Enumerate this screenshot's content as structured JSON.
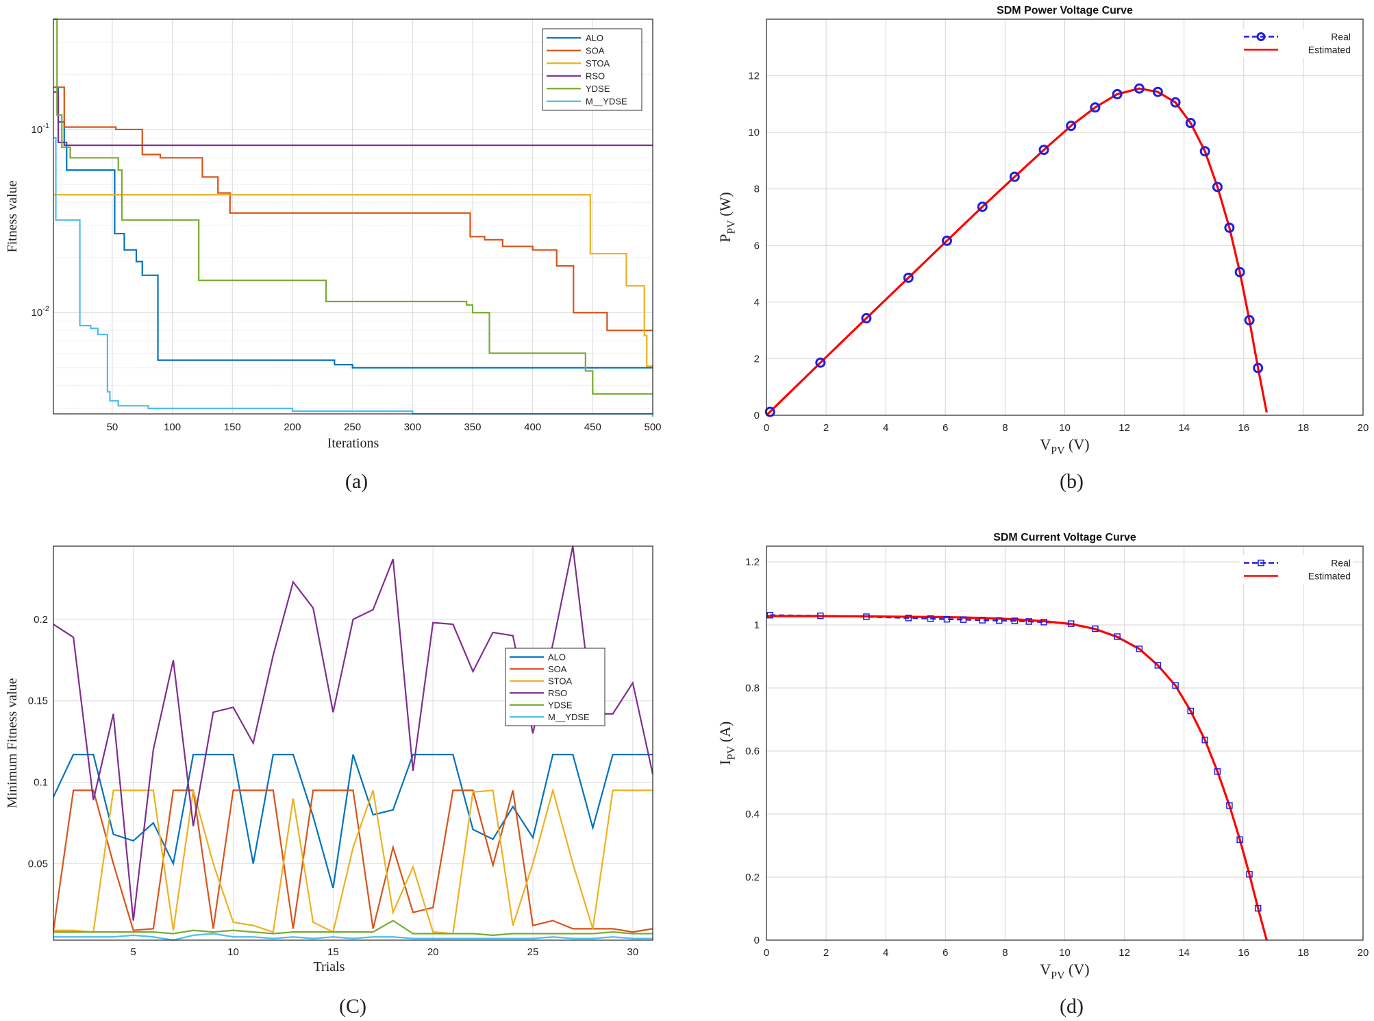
{
  "chart_data": [
    {
      "panel": "a",
      "type": "line",
      "caption": "(a)",
      "xlabel": "Iterations",
      "ylabel": "Fitness value",
      "yscale": "log",
      "xlim": [
        1,
        500
      ],
      "ylim": [
        0.0028,
        0.4
      ],
      "xticks": [
        50,
        100,
        150,
        200,
        250,
        300,
        350,
        400,
        450,
        500
      ],
      "ytick_labels": [
        {
          "value": 0.1,
          "base": "10",
          "exp": "-1"
        },
        {
          "value": 0.01,
          "base": "10",
          "exp": "-2"
        }
      ],
      "legend": "top-right",
      "series": [
        {
          "name": "ALO",
          "color": "#0072bd",
          "steps": [
            [
              1,
              0.17
            ],
            [
              5,
              0.11
            ],
            [
              10,
              0.085
            ],
            [
              12,
              0.06
            ],
            [
              50,
              0.06
            ],
            [
              52,
              0.027
            ],
            [
              60,
              0.022
            ],
            [
              70,
              0.019
            ],
            [
              75,
              0.016
            ],
            [
              88,
              0.0055
            ],
            [
              230,
              0.0055
            ],
            [
              235,
              0.0052
            ],
            [
              250,
              0.005
            ],
            [
              500,
              0.005
            ]
          ]
        },
        {
          "name": "SOA",
          "color": "#d95319",
          "steps": [
            [
              1,
              0.17
            ],
            [
              10,
              0.103
            ],
            [
              48,
              0.103
            ],
            [
              53,
              0.1
            ],
            [
              70,
              0.1
            ],
            [
              75,
              0.073
            ],
            [
              90,
              0.07
            ],
            [
              120,
              0.07
            ],
            [
              125,
              0.055
            ],
            [
              138,
              0.045
            ],
            [
              148,
              0.035
            ],
            [
              345,
              0.035
            ],
            [
              348,
              0.026
            ],
            [
              360,
              0.025
            ],
            [
              375,
              0.023
            ],
            [
              400,
              0.022
            ],
            [
              420,
              0.018
            ],
            [
              425,
              0.018
            ],
            [
              434,
              0.01
            ],
            [
              460,
              0.01
            ],
            [
              462,
              0.008
            ],
            [
              500,
              0.008
            ]
          ]
        },
        {
          "name": "STOA",
          "color": "#edb120",
          "steps": [
            [
              1,
              0.044
            ],
            [
              445,
              0.044
            ],
            [
              448,
              0.021
            ],
            [
              475,
              0.021
            ],
            [
              478,
              0.014
            ],
            [
              490,
              0.014
            ],
            [
              493,
              0.0075
            ],
            [
              495,
              0.0051
            ],
            [
              500,
              0.0051
            ]
          ]
        },
        {
          "name": "RSO",
          "color": "#7e2f8e",
          "steps": [
            [
              1,
              0.16
            ],
            [
              5,
              0.085
            ],
            [
              10,
              0.082
            ],
            [
              500,
              0.082
            ]
          ]
        },
        {
          "name": "YDSE",
          "color": "#77ac30",
          "steps": [
            [
              1,
              0.4
            ],
            [
              4,
              0.12
            ],
            [
              8,
              0.08
            ],
            [
              15,
              0.07
            ],
            [
              48,
              0.07
            ],
            [
              55,
              0.06
            ],
            [
              58,
              0.032
            ],
            [
              120,
              0.032
            ],
            [
              122,
              0.015
            ],
            [
              225,
              0.015
            ],
            [
              228,
              0.0115
            ],
            [
              345,
              0.011
            ],
            [
              350,
              0.01
            ],
            [
              362,
              0.01
            ],
            [
              364,
              0.006
            ],
            [
              440,
              0.006
            ],
            [
              444,
              0.0048
            ],
            [
              450,
              0.0036
            ],
            [
              500,
              0.0036
            ]
          ]
        },
        {
          "name": "M__YDSE",
          "color": "#4dbeee",
          "steps": [
            [
              1,
              0.09
            ],
            [
              3,
              0.032
            ],
            [
              20,
              0.032
            ],
            [
              23,
              0.0085
            ],
            [
              32,
              0.0082
            ],
            [
              38,
              0.0076
            ],
            [
              43,
              0.0076
            ],
            [
              46,
              0.0037
            ],
            [
              48,
              0.0033
            ],
            [
              55,
              0.0031
            ],
            [
              80,
              0.003
            ],
            [
              120,
              0.003
            ],
            [
              200,
              0.0029
            ],
            [
              300,
              0.0028
            ],
            [
              400,
              0.0028
            ],
            [
              500,
              0.0027
            ]
          ]
        }
      ]
    },
    {
      "panel": "b",
      "type": "line",
      "caption": "(b)",
      "title": "SDM Power Voltage Curve",
      "xlabel": {
        "base": "V",
        "sub": "PV",
        "unit": " (V)"
      },
      "ylabel": {
        "base": "P",
        "sub": "PV",
        "unit": " (W)"
      },
      "xlim": [
        0,
        20
      ],
      "ylim": [
        0,
        14
      ],
      "xticks": [
        0,
        2,
        4,
        6,
        8,
        10,
        12,
        14,
        16,
        18,
        20
      ],
      "yticks": [
        0,
        2,
        4,
        6,
        8,
        10,
        12
      ],
      "legend": "top-right",
      "series": [
        {
          "name": "Real",
          "color": "#1f1fe0",
          "marker": "circle",
          "x": [
            0.12,
            1.81,
            3.35,
            4.76,
            6.05,
            7.24,
            8.32,
            9.3,
            10.21,
            11.02,
            11.76,
            12.5,
            13.12,
            13.71,
            14.22,
            14.7,
            15.12,
            15.52,
            15.87,
            16.19,
            16.48
          ],
          "y": [
            0.12,
            1.86,
            3.43,
            4.86,
            6.17,
            7.37,
            8.43,
            9.38,
            10.23,
            10.88,
            11.35,
            11.55,
            11.43,
            11.06,
            10.33,
            9.33,
            8.07,
            6.63,
            5.06,
            3.36,
            1.67
          ]
        },
        {
          "name": "Estimated",
          "color": "#ff0000",
          "x": [
            0,
            1.81,
            3.35,
            4.76,
            6.05,
            7.24,
            8.32,
            9.3,
            10.21,
            11.02,
            11.76,
            12.5,
            13.12,
            13.71,
            14.22,
            14.7,
            15.12,
            15.52,
            15.87,
            16.19,
            16.48,
            16.77
          ],
          "y": [
            0,
            1.86,
            3.43,
            4.86,
            6.17,
            7.37,
            8.43,
            9.38,
            10.23,
            10.88,
            11.35,
            11.55,
            11.43,
            11.06,
            10.33,
            9.33,
            8.07,
            6.63,
            5.06,
            3.36,
            1.67,
            0.1
          ]
        }
      ]
    },
    {
      "panel": "c",
      "type": "line",
      "caption": "(C)",
      "xlabel": "Trials",
      "ylabel": "Minimum Fitness value",
      "xlim": [
        1,
        31
      ],
      "ylim": [
        0.003,
        0.245
      ],
      "xticks": [
        5,
        10,
        15,
        20,
        25,
        30
      ],
      "yticks": [
        0.05,
        0.1,
        0.15,
        0.2
      ],
      "ytick_labels": [
        "0.05",
        "0.1",
        "0.15",
        "0.2"
      ],
      "legend": "right",
      "x": [
        1,
        2,
        3,
        4,
        5,
        6,
        7,
        8,
        9,
        10,
        11,
        12,
        13,
        14,
        15,
        16,
        17,
        18,
        19,
        20,
        21,
        22,
        23,
        24,
        25,
        26,
        27,
        28,
        29,
        30,
        31
      ],
      "series": [
        {
          "name": "ALO",
          "color": "#0072bd",
          "values": [
            0.091,
            0.117,
            0.117,
            0.068,
            0.064,
            0.075,
            0.05,
            0.117,
            0.117,
            0.117,
            0.05,
            0.117,
            0.117,
            0.079,
            0.035,
            0.117,
            0.08,
            0.083,
            0.117,
            0.117,
            0.117,
            0.071,
            0.065,
            0.085,
            0.066,
            0.117,
            0.117,
            0.072,
            0.117,
            0.117,
            0.117
          ]
        },
        {
          "name": "SOA",
          "color": "#d95319",
          "values": [
            0.009,
            0.095,
            0.095,
            0.05,
            0.009,
            0.01,
            0.095,
            0.095,
            0.01,
            0.095,
            0.095,
            0.095,
            0.01,
            0.095,
            0.095,
            0.095,
            0.01,
            0.06,
            0.02,
            0.023,
            0.095,
            0.095,
            0.049,
            0.095,
            0.012,
            0.015,
            0.01,
            0.01,
            0.01,
            0.008,
            0.01
          ]
        },
        {
          "name": "STOA",
          "color": "#edb120",
          "values": [
            0.009,
            0.009,
            0.008,
            0.095,
            0.095,
            0.095,
            0.009,
            0.095,
            0.05,
            0.014,
            0.012,
            0.008,
            0.09,
            0.014,
            0.008,
            0.06,
            0.095,
            0.02,
            0.048,
            0.008,
            0.007,
            0.094,
            0.095,
            0.012,
            0.05,
            0.095,
            0.05,
            0.01,
            0.095,
            0.095,
            0.095
          ]
        },
        {
          "name": "RSO",
          "color": "#7e2f8e",
          "values": [
            0.197,
            0.189,
            0.089,
            0.142,
            0.015,
            0.12,
            0.175,
            0.073,
            0.143,
            0.146,
            0.124,
            0.178,
            0.223,
            0.207,
            0.143,
            0.2,
            0.206,
            0.237,
            0.107,
            0.198,
            0.197,
            0.168,
            0.192,
            0.19,
            0.13,
            0.185,
            0.245,
            0.142,
            0.142,
            0.161,
            0.105
          ]
        },
        {
          "name": "YDSE",
          "color": "#77ac30",
          "values": [
            0.008,
            0.008,
            0.008,
            0.008,
            0.008,
            0.008,
            0.007,
            0.009,
            0.008,
            0.009,
            0.008,
            0.007,
            0.008,
            0.008,
            0.008,
            0.008,
            0.008,
            0.015,
            0.007,
            0.007,
            0.007,
            0.007,
            0.006,
            0.007,
            0.007,
            0.007,
            0.007,
            0.007,
            0.008,
            0.007,
            0.007
          ]
        },
        {
          "name": "M__YDSE",
          "color": "#4dbeee",
          "values": [
            0.005,
            0.005,
            0.005,
            0.005,
            0.006,
            0.005,
            0.003,
            0.006,
            0.007,
            0.005,
            0.005,
            0.004,
            0.005,
            0.004,
            0.005,
            0.004,
            0.005,
            0.005,
            0.004,
            0.004,
            0.004,
            0.004,
            0.004,
            0.004,
            0.004,
            0.005,
            0.004,
            0.004,
            0.005,
            0.004,
            0.004
          ]
        }
      ]
    },
    {
      "panel": "d",
      "type": "line",
      "caption": "(d)",
      "title": "SDM Current Voltage Curve",
      "xlabel": {
        "base": "V",
        "sub": "PV",
        "unit": " (V)"
      },
      "ylabel": {
        "base": "I",
        "sub": "PV",
        "unit": " (A)"
      },
      "xlim": [
        0,
        20
      ],
      "ylim": [
        0,
        1.25
      ],
      "xticks": [
        0,
        2,
        4,
        6,
        8,
        10,
        12,
        14,
        16,
        18,
        20
      ],
      "yticks": [
        0,
        0.2,
        0.4,
        0.6,
        0.8,
        1,
        1.2
      ],
      "ytick_labels": [
        "0",
        "0.2",
        "0.4",
        "0.6",
        "0.8",
        "1",
        "1.2"
      ],
      "legend": "top-right",
      "series": [
        {
          "name": "Real",
          "color": "#1f1fe0",
          "marker": "square",
          "x": [
            0.12,
            1.81,
            3.35,
            4.76,
            5.5,
            6.05,
            6.6,
            7.24,
            7.8,
            8.32,
            8.8,
            9.3,
            10.21,
            11.02,
            11.76,
            12.5,
            13.12,
            13.71,
            14.22,
            14.7,
            15.12,
            15.52,
            15.87,
            16.19,
            16.48
          ],
          "y": [
            1.031,
            1.029,
            1.026,
            1.022,
            1.02,
            1.018,
            1.017,
            1.015,
            1.014,
            1.013,
            1.011,
            1.009,
            1.004,
            0.988,
            0.963,
            0.924,
            0.872,
            0.808,
            0.727,
            0.635,
            0.535,
            0.427,
            0.319,
            0.209,
            0.101
          ]
        },
        {
          "name": "Estimated",
          "color": "#ff0000",
          "x": [
            0,
            1.81,
            3.35,
            4.76,
            6.05,
            7.24,
            8.32,
            9.3,
            10.21,
            11.02,
            11.76,
            12.5,
            13.12,
            13.71,
            14.22,
            14.7,
            15.12,
            15.52,
            15.87,
            16.19,
            16.48,
            16.77
          ],
          "y": [
            1.028,
            1.028,
            1.027,
            1.026,
            1.025,
            1.022,
            1.018,
            1.012,
            1.003,
            0.987,
            0.962,
            0.924,
            0.872,
            0.808,
            0.727,
            0.635,
            0.535,
            0.427,
            0.319,
            0.209,
            0.101,
            0.0
          ]
        }
      ]
    }
  ]
}
